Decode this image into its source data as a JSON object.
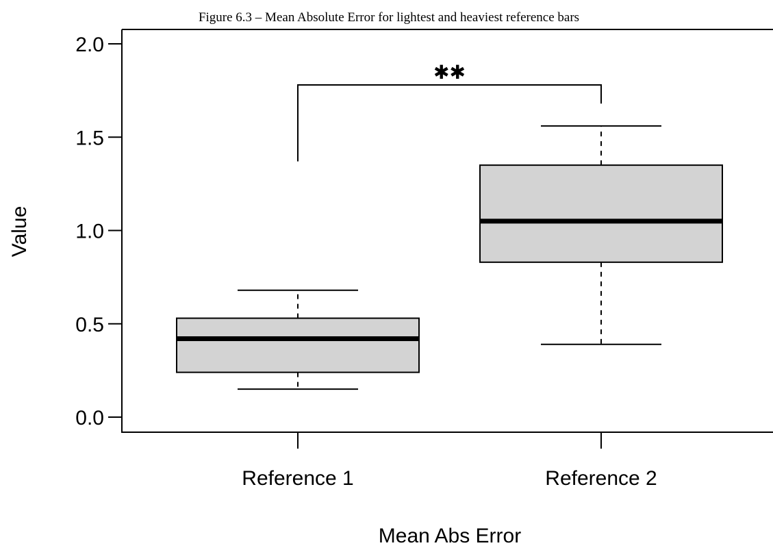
{
  "chart_data": {
    "type": "boxplot",
    "title": "Figure 6.3 – Mean Absolute Error for lightest and heaviest reference bars",
    "xlabel": "Mean Abs Error",
    "ylabel": "Value",
    "ylim": [
      0,
      2.0
    ],
    "yticks": [
      "0.0",
      "0.5",
      "1.0",
      "1.5",
      "2.0"
    ],
    "categories": [
      "Reference 1",
      "Reference 2"
    ],
    "boxes": [
      {
        "category": "Reference 1",
        "whisker_low": 0.15,
        "q1": 0.24,
        "median": 0.42,
        "q3": 0.53,
        "whisker_high": 0.68
      },
      {
        "category": "Reference 2",
        "whisker_low": 0.39,
        "q1": 0.83,
        "median": 1.05,
        "q3": 1.35,
        "whisker_high": 1.56
      }
    ],
    "box_color": "#d3d3d3",
    "annotation": {
      "label": "✱✱",
      "between": [
        "Reference 1",
        "Reference 2"
      ],
      "bracket_y": 1.78,
      "left_bottom": 1.37,
      "right_bottom": 1.68
    },
    "grid": false
  }
}
